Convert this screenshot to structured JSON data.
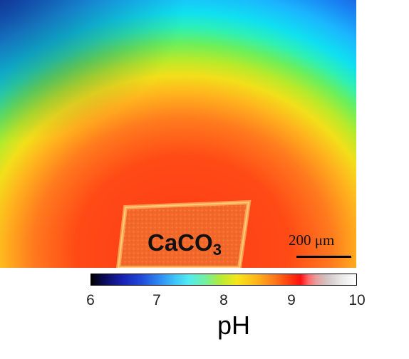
{
  "image": {
    "sample_label_main": "CaCO",
    "sample_label_sub": "3",
    "scale_bar_label": "200 μm"
  },
  "colorbar": {
    "ticks": [
      "6",
      "7",
      "8",
      "9",
      "10"
    ],
    "unit": "pH"
  }
}
